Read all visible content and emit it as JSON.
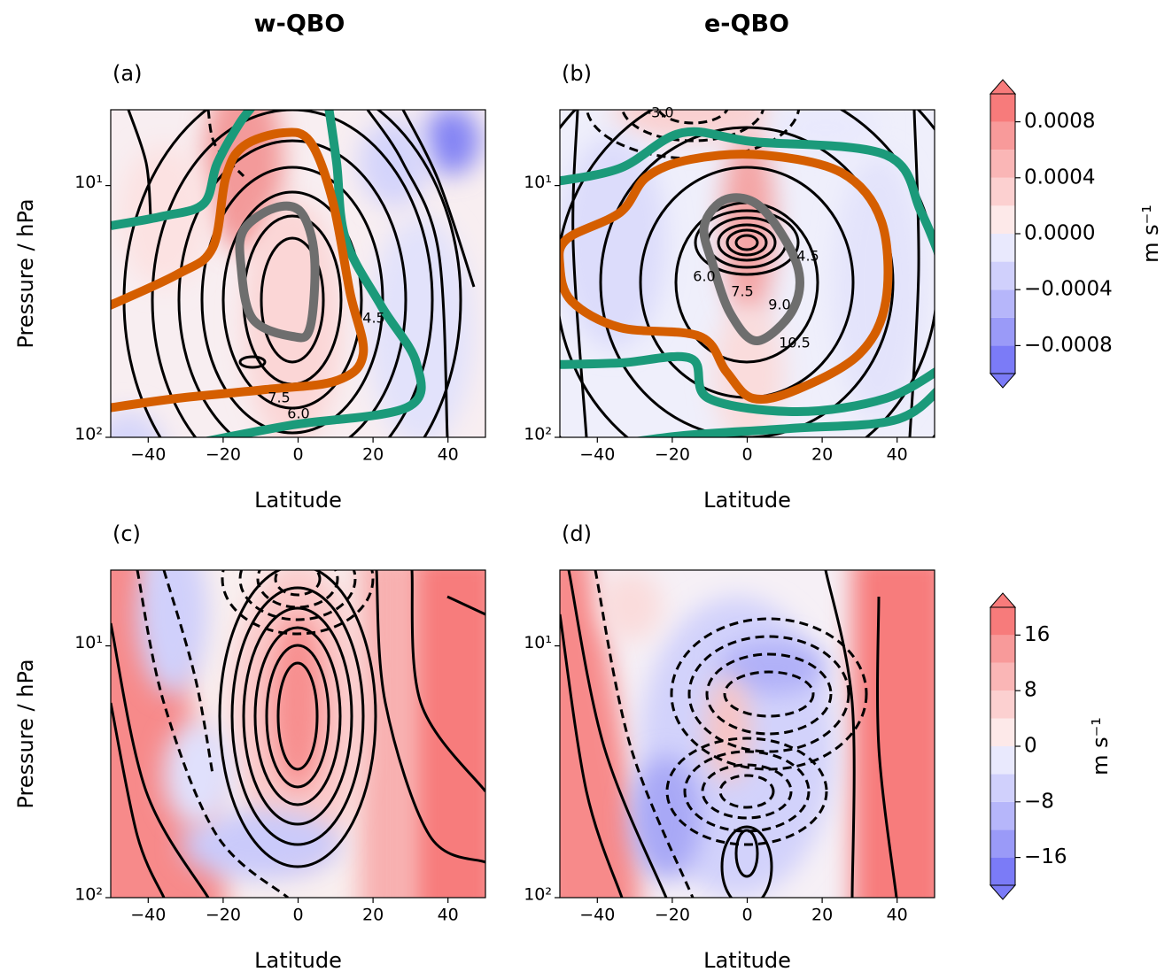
{
  "figure": {
    "column_titles": [
      "w-QBO",
      "e-QBO"
    ]
  },
  "chart_data": [
    {
      "type": "contour",
      "label": "(a)",
      "xlabel": "Latitude",
      "ylabel": "Pressure / hPa",
      "xlim": [
        -50,
        50
      ],
      "ylim": [
        100,
        5
      ],
      "yscale": "log",
      "xticks": [
        {
          "value": -40,
          "label": "−40"
        },
        {
          "value": -20,
          "label": "−20"
        },
        0,
        20,
        40
      ],
      "yticks": [
        {
          "value": 10,
          "label": "10¹"
        },
        {
          "value": 100,
          "label": "10²"
        }
      ],
      "contour_labels": [
        "4.5",
        "7.5",
        "6.0"
      ]
    },
    {
      "type": "contour",
      "label": "(b)",
      "xlabel": "Latitude",
      "xlim": [
        -50,
        50
      ],
      "ylim": [
        100,
        5
      ],
      "yscale": "log",
      "xticks": [
        {
          "value": -40,
          "label": "−40"
        },
        {
          "value": -20,
          "label": "−20"
        },
        0,
        20,
        40
      ],
      "yticks": [
        {
          "value": 10,
          "label": "10¹"
        },
        {
          "value": 100,
          "label": "10²"
        }
      ],
      "contour_labels": [
        "-3.0",
        "4.5",
        "6.0",
        "7.5",
        "9.0",
        "10.5"
      ]
    },
    {
      "type": "contour",
      "label": "(c)",
      "xlabel": "Latitude",
      "ylabel": "Pressure / hPa",
      "xlim": [
        -50,
        50
      ],
      "ylim": [
        100,
        5
      ],
      "yscale": "log",
      "xticks": [
        {
          "value": -40,
          "label": "−40"
        },
        {
          "value": -20,
          "label": "−20"
        },
        0,
        20,
        40
      ],
      "yticks": [
        {
          "value": 10,
          "label": "10¹"
        },
        {
          "value": 100,
          "label": "10²"
        }
      ]
    },
    {
      "type": "contour",
      "label": "(d)",
      "xlabel": "Latitude",
      "xlim": [
        -50,
        50
      ],
      "ylim": [
        100,
        5
      ],
      "yscale": "log",
      "xticks": [
        {
          "value": -40,
          "label": "−40"
        },
        {
          "value": -20,
          "label": "−20"
        },
        0,
        20,
        40
      ],
      "yticks": [
        {
          "value": 10,
          "label": "10¹"
        },
        {
          "value": 100,
          "label": "10²"
        }
      ]
    }
  ],
  "colorbars": [
    {
      "label": "m s⁻¹",
      "ylim": [
        -0.001,
        0.001
      ],
      "extend": "both",
      "levels": [
        -0.001,
        -0.0008,
        -0.0006,
        -0.0004,
        -0.0002,
        0,
        0.0002,
        0.0004,
        0.0006,
        0.0008,
        0.001
      ],
      "colors": [
        "#7b7bf7",
        "#9a9af8",
        "#b6b6fa",
        "#d0d0fc",
        "#e9e9fd",
        "#fde9e9",
        "#fcd0d0",
        "#fab6b6",
        "#f89a9a",
        "#f77b7b"
      ],
      "ticks": [
        {
          "value": 0.0008,
          "label": "0.0008"
        },
        {
          "value": 0.0004,
          "label": "0.0004"
        },
        {
          "value": 0,
          "label": "0.0000"
        },
        {
          "value": -0.0004,
          "label": "−0.0004"
        },
        {
          "value": -0.0008,
          "label": "−0.0008"
        }
      ]
    },
    {
      "label": "m s⁻¹",
      "ylim": [
        -20,
        20
      ],
      "extend": "both",
      "levels": [
        -20,
        -16,
        -12,
        -8,
        -4,
        0,
        4,
        8,
        12,
        16,
        20
      ],
      "colors": [
        "#7b7bf7",
        "#9a9af8",
        "#b6b6fa",
        "#d0d0fc",
        "#e9e9fd",
        "#fde9e9",
        "#fcd0d0",
        "#fab6b6",
        "#f89a9a",
        "#f77b7b"
      ],
      "ticks": [
        16,
        8,
        0,
        {
          "value": -8,
          "label": "−8"
        },
        {
          "value": -16,
          "label": "−16"
        }
      ]
    }
  ]
}
